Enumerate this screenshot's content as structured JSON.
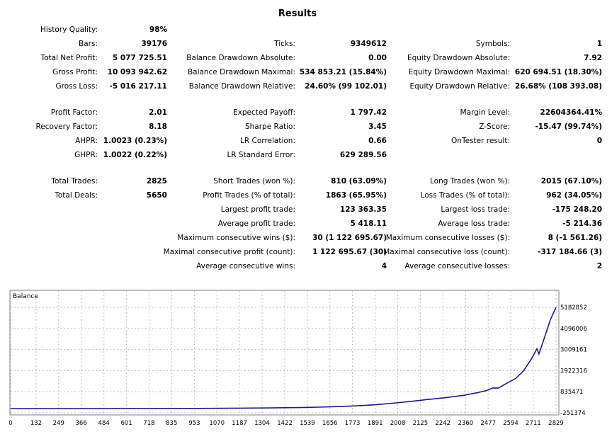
{
  "report": {
    "title": "Results",
    "sections": [
      {
        "rows": [
          {
            "col1": [
              "History Quality:",
              "98%"
            ]
          },
          {
            "col1": [
              "Bars:",
              "39176"
            ],
            "col2": [
              "Ticks:",
              "9349612"
            ],
            "col3": [
              "Symbols:",
              "1"
            ]
          },
          {
            "col1": [
              "Total Net Profit:",
              "5 077 725.51"
            ],
            "col2": [
              "Balance Drawdown Absolute:",
              "0.00"
            ],
            "col3": [
              "Equity Drawdown Absolute:",
              "7.92"
            ]
          },
          {
            "col1": [
              "Gross Profit:",
              "10 093 942.62"
            ],
            "col2": [
              "Balance Drawdown Maximal:",
              "534 853.21 (15.84%)"
            ],
            "col3": [
              "Equity Drawdown Maximal:",
              "620 694.51 (18.30%)"
            ]
          },
          {
            "col1": [
              "Gross Loss:",
              "-5 016 217.11"
            ],
            "col2": [
              "Balance Drawdown Relative:",
              "24.60% (99 102.01)"
            ],
            "col3": [
              "Equity Drawdown Relative:",
              "26.68% (108 393.08)"
            ]
          }
        ]
      },
      {
        "rows": [
          {
            "col1": [
              "Profit Factor:",
              "2.01"
            ],
            "col2": [
              "Expected Payoff:",
              "1 797.42"
            ],
            "col3": [
              "Margin Level:",
              "22604364.41%"
            ]
          },
          {
            "col1": [
              "Recovery Factor:",
              "8.18"
            ],
            "col2": [
              "Sharpe Ratio:",
              "3.45"
            ],
            "col3": [
              "Z-Score:",
              "-15.47 (99.74%)"
            ]
          },
          {
            "col1": [
              "AHPR:",
              "1.0023 (0.23%)"
            ],
            "col2": [
              "LR Correlation:",
              "0.66"
            ],
            "col3": [
              "OnTester result:",
              "0"
            ]
          },
          {
            "col1": [
              "GHPR:",
              "1.0022 (0.22%)"
            ],
            "col2": [
              "LR Standard Error:",
              "629 289.56"
            ]
          }
        ]
      },
      {
        "rows": [
          {
            "col1": [
              "Total Trades:",
              "2825"
            ],
            "col2": [
              "Short Trades (won %):",
              "810 (63.09%)"
            ],
            "col3": [
              "Long Trades (won %):",
              "2015 (67.10%)"
            ]
          },
          {
            "col1": [
              "Total Deals:",
              "5650"
            ],
            "col2": [
              "Profit Trades (% of total):",
              "1863 (65.95%)"
            ],
            "col3": [
              "Loss Trades (% of total):",
              "962 (34.05%)"
            ]
          },
          {
            "col2": [
              "Largest profit trade:",
              "123 363.35"
            ],
            "col3": [
              "Largest loss trade:",
              "-175 248.20"
            ]
          },
          {
            "col2": [
              "Average profit trade:",
              "5 418.11"
            ],
            "col3": [
              "Average loss trade:",
              "-5 214.36"
            ]
          },
          {
            "col2": [
              "Maximum consecutive wins ($):",
              "30 (1 122 695.67)"
            ],
            "col3": [
              "Maximum consecutive losses ($):",
              "8 (-1 561.26)"
            ]
          },
          {
            "col2": [
              "Maximal consecutive profit (count):",
              "1 122 695.67 (30)"
            ],
            "col3": [
              "Maximal consecutive loss (count):",
              "-317 184.66 (3)"
            ]
          },
          {
            "col2": [
              "Average consecutive wins:",
              "4"
            ],
            "col3": [
              "Average consecutive losses:",
              "2"
            ]
          }
        ]
      }
    ]
  },
  "chart_data": {
    "type": "line",
    "title": "Balance",
    "xlabel": "",
    "ylabel": "",
    "x_ticks": [
      0,
      132,
      249,
      366,
      484,
      601,
      718,
      835,
      953,
      1070,
      1187,
      1304,
      1422,
      1539,
      1656,
      1773,
      1891,
      2008,
      2125,
      2242,
      2360,
      2477,
      2594,
      2711,
      2829
    ],
    "y_ticks": [
      -251374,
      835471,
      1922316,
      3009161,
      4096006,
      5182852
    ],
    "xlim": [
      0,
      2829
    ],
    "ylim": [
      -251374,
      5400000
    ],
    "grid": true,
    "line_color": "#1a1a8c",
    "series": [
      {
        "name": "Balance",
        "x": [
          0,
          150,
          300,
          450,
          600,
          750,
          900,
          1050,
          1200,
          1350,
          1500,
          1600,
          1700,
          1800,
          1900,
          2000,
          2080,
          2150,
          2250,
          2350,
          2420,
          2470,
          2500,
          2530,
          2570,
          2620,
          2660,
          2700,
          2730,
          2740,
          2760,
          2780,
          2800,
          2829
        ],
        "y": [
          -40000,
          -40000,
          -40000,
          -40000,
          -38000,
          -35000,
          -30000,
          -20000,
          -10000,
          0,
          20000,
          40000,
          70000,
          110000,
          170000,
          260000,
          340000,
          420000,
          520000,
          650000,
          780000,
          900000,
          1030000,
          1020000,
          1250000,
          1520000,
          1900000,
          2500000,
          3050000,
          2780000,
          3350000,
          3950000,
          4550000,
          5182852
        ]
      }
    ]
  }
}
